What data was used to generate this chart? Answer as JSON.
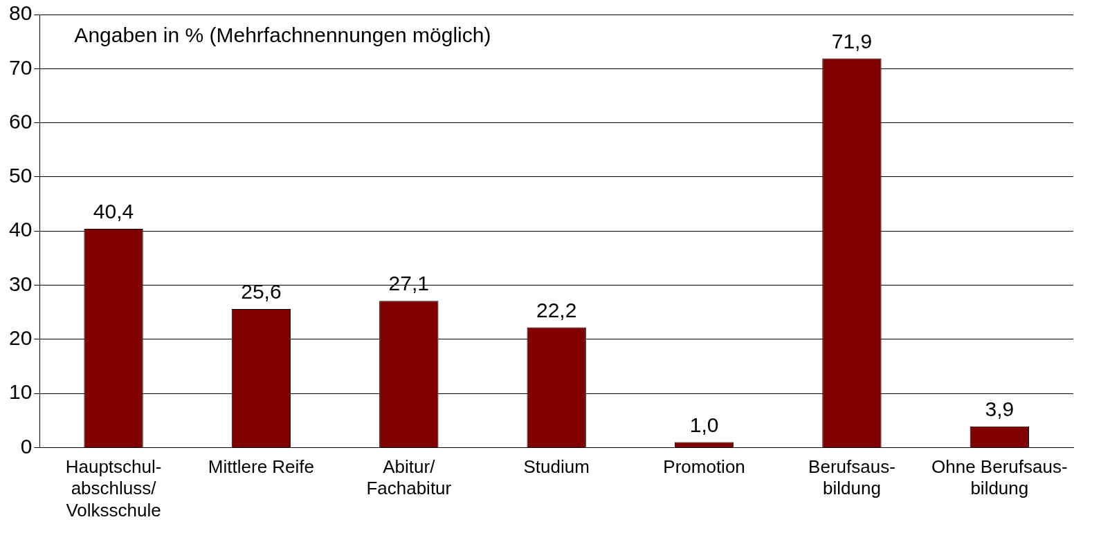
{
  "chart_data": {
    "type": "bar",
    "categories": [
      "Hauptschul-\nabschluss/\nVolksschule",
      "Mittlere Reife",
      "Abitur/\nFachabitur",
      "Studium",
      "Promotion",
      "Berufsaus-\nbildung",
      "Ohne Berufsaus-\nbildung"
    ],
    "values": [
      40.4,
      25.6,
      27.1,
      22.2,
      1.0,
      71.9,
      3.9
    ],
    "value_labels": [
      "40,4",
      "25,6",
      "27,1",
      "22,2",
      "1,0",
      "71,9",
      "3,9"
    ],
    "color": "#800000",
    "ylim": [
      0,
      80
    ],
    "yticks": [
      0,
      10,
      20,
      30,
      40,
      50,
      60,
      70,
      80
    ],
    "grid": "y",
    "annotations": [
      "Angaben in % (Mehrfachnennungen möglich)"
    ]
  }
}
